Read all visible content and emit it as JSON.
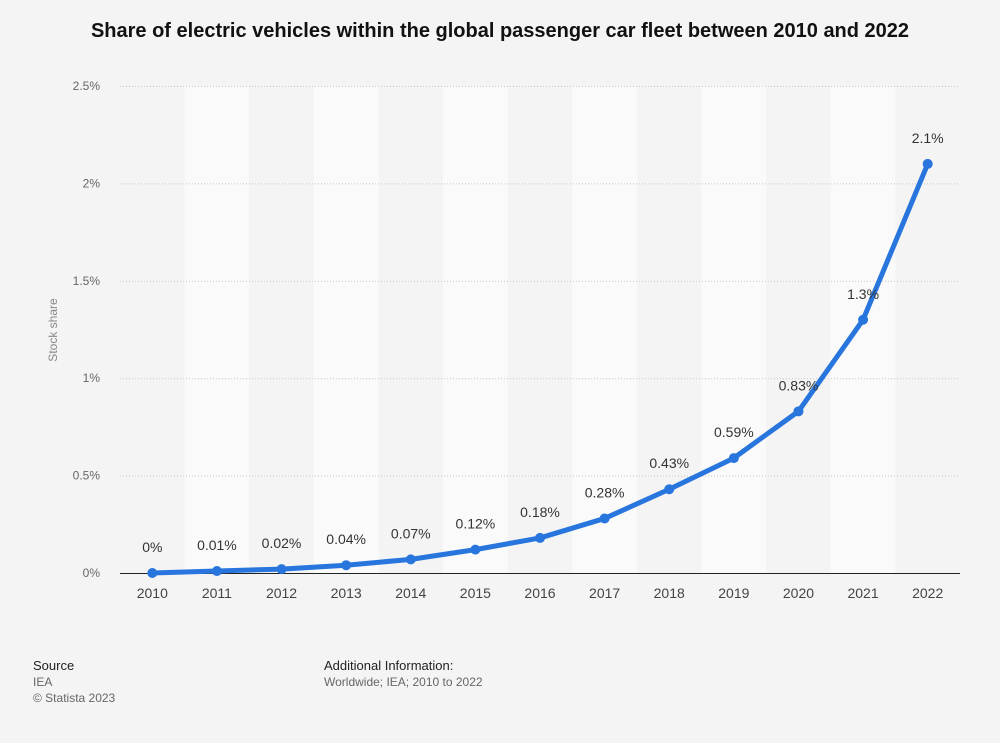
{
  "title": "Share of electric vehicles within the global passenger car fleet between 2010 and 2022",
  "chart_data": {
    "type": "line",
    "title": "Share of electric vehicles within the global passenger car fleet between 2010 and 2022",
    "xlabel": "",
    "ylabel": "Stock share",
    "categories": [
      "2010",
      "2011",
      "2012",
      "2013",
      "2014",
      "2015",
      "2016",
      "2017",
      "2018",
      "2019",
      "2020",
      "2021",
      "2022"
    ],
    "values": [
      0,
      0.01,
      0.02,
      0.04,
      0.07,
      0.12,
      0.18,
      0.28,
      0.43,
      0.59,
      0.83,
      1.3,
      2.1
    ],
    "data_labels": [
      "0%",
      "0.01%",
      "0.02%",
      "0.04%",
      "0.07%",
      "0.12%",
      "0.18%",
      "0.28%",
      "0.43%",
      "0.59%",
      "0.83%",
      "1.3%",
      "2.1%"
    ],
    "ylim": [
      0,
      2.5
    ],
    "yticks": [
      0,
      0.5,
      1,
      1.5,
      2,
      2.5
    ],
    "ytick_labels": [
      "0%",
      "0.5%",
      "1%",
      "1.5%",
      "2%",
      "2.5%"
    ],
    "grid": true,
    "legend": "none",
    "line_color": "#2876dd"
  },
  "footer": {
    "source_heading": "Source",
    "source_text": "IEA",
    "copyright": "© Statista 2023",
    "info_heading": "Additional Information:",
    "info_text": "Worldwide; IEA; 2010 to 2022"
  }
}
